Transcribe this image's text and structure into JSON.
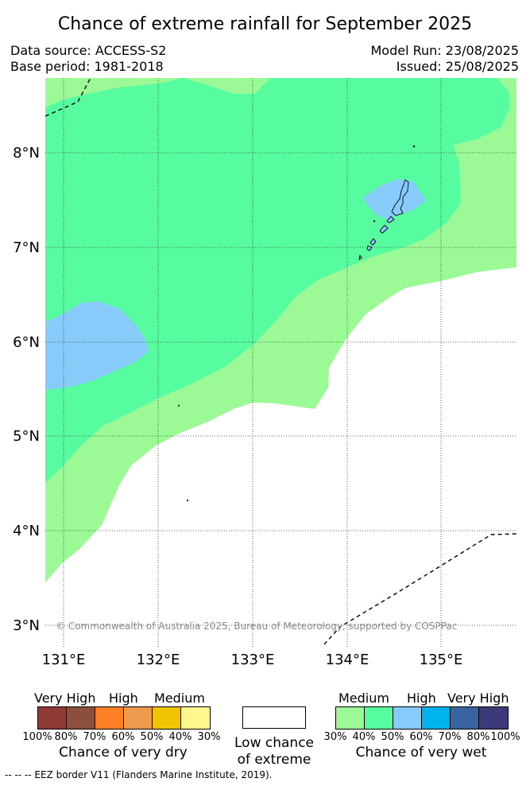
{
  "title": "Chance of extreme rainfall for September 2025",
  "data_source": "Data source: ACCESS-S2",
  "base_period": "Base period: 1981-2018",
  "model_run": "Model Run: 23/08/2025",
  "issued": "Issued: 25/08/2025",
  "copyright": "© Commonwealth of Australia 2025, Bureau of Meteorology, supported by COSPPac",
  "map": {
    "lon_labels": [
      "131°E",
      "132°E",
      "133°E",
      "134°E",
      "135°E"
    ],
    "lat_labels": [
      "8°N",
      "7°N",
      "6°N",
      "5°N",
      "4°N",
      "3°N"
    ]
  },
  "legend_dry": {
    "top_labels": [
      "Very High",
      "High",
      "Medium"
    ],
    "ticks": [
      "100%",
      "80%",
      "70%",
      "60%",
      "50%",
      "40%",
      "30%"
    ],
    "title": "Chance of very dry",
    "colors": [
      "#8e3a36",
      "#8c4f3e",
      "#ff7f27",
      "#ed9a4c",
      "#f0c400",
      "#fff68e"
    ]
  },
  "legend_low": {
    "line1": "Low chance",
    "line2": "of extreme",
    "color": "#ffffff"
  },
  "legend_wet": {
    "top_labels": [
      "Medium",
      "High",
      "Very High"
    ],
    "ticks": [
      "30%",
      "40%",
      "50%",
      "60%",
      "70%",
      "80%",
      "100%"
    ],
    "title": "Chance of very wet",
    "colors": [
      "#9bfa95",
      "#57fba0",
      "#87cbfb",
      "#00b2ed",
      "#3a649f",
      "#3c3a79"
    ]
  },
  "footnote": "-- -- -- EEZ border V11 (Flanders Marine Institute, 2019)."
}
